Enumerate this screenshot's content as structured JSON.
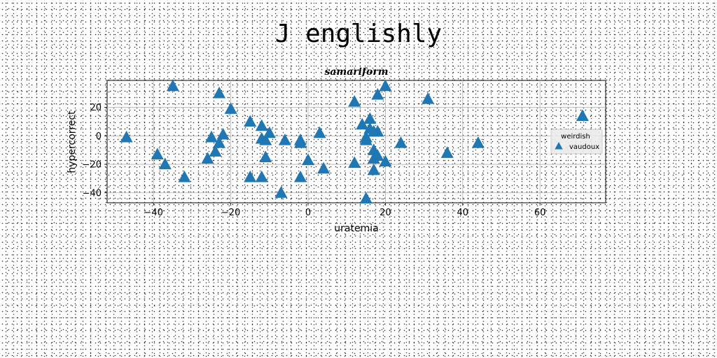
{
  "page": {
    "suptitle": "J englishly"
  },
  "chart_data": {
    "type": "scatter",
    "title": "samariform",
    "xlabel": "uratemia",
    "ylabel": "hypercorrect",
    "xlim": [
      -52,
      77
    ],
    "ylim": [
      -47,
      39
    ],
    "xticks": [
      -40,
      -20,
      0,
      20,
      40,
      60
    ],
    "yticks": [
      -40,
      -20,
      0,
      20
    ],
    "grid": true,
    "legend": {
      "title": "weirdish",
      "placement": "center-right"
    },
    "series": [
      {
        "name": "vaudoux",
        "color": "#1f77b4",
        "marker": "triangle-up",
        "x": [
          -47,
          -39,
          -37,
          -35,
          -32,
          -26,
          -25,
          -24,
          -23,
          -23,
          -22,
          -20,
          -15,
          -15,
          -12,
          -12,
          -12,
          -11,
          -11,
          -10,
          -7,
          -6,
          -2,
          -2,
          -2,
          0,
          3,
          4,
          12,
          12,
          14,
          15,
          15,
          15,
          16,
          16,
          17,
          17,
          17,
          17,
          18,
          18,
          18,
          20,
          20,
          24,
          31,
          36,
          44,
          71
        ],
        "y": [
          -1,
          -13,
          -20,
          35,
          -29,
          -16,
          -1,
          -11,
          -5,
          30,
          1,
          19,
          10,
          -29,
          7,
          -2,
          -29,
          -3,
          -15,
          2,
          -40,
          -3,
          -3,
          -5,
          -29,
          -17,
          2,
          -23,
          -19,
          24,
          8,
          -3,
          -44,
          -1,
          12,
          5,
          3,
          -10,
          -16,
          -24,
          3,
          29,
          -14,
          -18,
          35,
          -5,
          26,
          -12,
          -5,
          14
        ]
      }
    ]
  }
}
